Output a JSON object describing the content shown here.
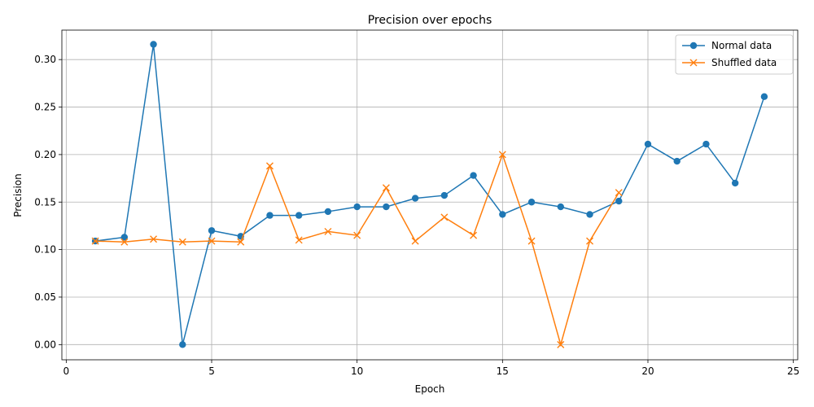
{
  "chart_data": {
    "type": "line",
    "title": "Precision over epochs",
    "xlabel": "Epoch",
    "ylabel": "Precision",
    "xlim": [
      -0.15,
      25.15
    ],
    "ylim": [
      -0.016,
      0.331
    ],
    "xticks": [
      0,
      5,
      10,
      15,
      20,
      25
    ],
    "xtick_labels": [
      "0",
      "5",
      "10",
      "15",
      "20",
      "25"
    ],
    "yticks": [
      0.0,
      0.05,
      0.1,
      0.15,
      0.2,
      0.25,
      0.3
    ],
    "ytick_labels": [
      "0.00",
      "0.05",
      "0.10",
      "0.15",
      "0.20",
      "0.25",
      "0.30"
    ],
    "grid": true,
    "legend_position": "top-right",
    "series": [
      {
        "name": "Normal data",
        "color": "#1f77b4",
        "marker": "circle",
        "x": [
          1,
          2,
          3,
          4,
          5,
          6,
          7,
          8,
          9,
          10,
          11,
          12,
          13,
          14,
          15,
          16,
          17,
          18,
          19,
          20,
          21,
          22,
          23,
          24
        ],
        "values": [
          0.109,
          0.113,
          0.316,
          0.0,
          0.12,
          0.114,
          0.136,
          0.136,
          0.14,
          0.145,
          0.145,
          0.154,
          0.157,
          0.178,
          0.137,
          0.15,
          0.145,
          0.137,
          0.151,
          0.211,
          0.193,
          0.211,
          0.17,
          0.261
        ]
      },
      {
        "name": "Shuffled data",
        "color": "#ff7f0e",
        "marker": "x",
        "x": [
          1,
          2,
          3,
          4,
          5,
          6,
          7,
          8,
          9,
          10,
          11,
          12,
          13,
          14,
          15,
          16,
          17,
          18,
          19
        ],
        "values": [
          0.109,
          0.108,
          0.111,
          0.108,
          0.109,
          0.108,
          0.188,
          0.11,
          0.119,
          0.115,
          0.165,
          0.109,
          0.134,
          0.115,
          0.2,
          0.109,
          0.0,
          0.109,
          0.16
        ]
      }
    ]
  }
}
